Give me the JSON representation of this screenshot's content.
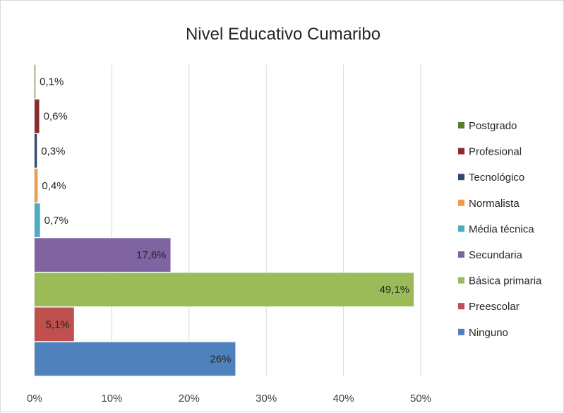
{
  "chart_data": {
    "type": "bar",
    "orientation": "horizontal",
    "title": "Nivel Educativo Cumaribo",
    "xlabel": "",
    "ylabel": "",
    "xlim": [
      0,
      50
    ],
    "x_ticks": [
      "0%",
      "10%",
      "20%",
      "30%",
      "40%",
      "50%"
    ],
    "x_tick_values": [
      0,
      10,
      20,
      30,
      40,
      50
    ],
    "grid": "vertical major gridlines",
    "legend_position": "right",
    "series": [
      {
        "name": "Postgrado",
        "value": 0.1,
        "label": "0,1%",
        "color": "#5a7d2e"
      },
      {
        "name": "Profesional",
        "value": 0.6,
        "label": "0,6%",
        "color": "#8b2c2c"
      },
      {
        "name": "Tecnológico",
        "value": 0.3,
        "label": "0,3%",
        "color": "#2f4a73"
      },
      {
        "name": "Normalista",
        "value": 0.4,
        "label": "0,4%",
        "color": "#f39a4a"
      },
      {
        "name": "Média técnica",
        "value": 0.7,
        "label": "0,7%",
        "color": "#4bacc6"
      },
      {
        "name": "Secundaria",
        "value": 17.6,
        "label": "17,6%",
        "color": "#8064a2"
      },
      {
        "name": "Básica primaria",
        "value": 49.1,
        "label": "49,1%",
        "color": "#9bbb59"
      },
      {
        "name": "Preescolar",
        "value": 5.1,
        "label": "5,1%",
        "color": "#c0504d"
      },
      {
        "name": "Ninguno",
        "value": 26,
        "label": "26%",
        "color": "#4f81bd"
      }
    ]
  }
}
